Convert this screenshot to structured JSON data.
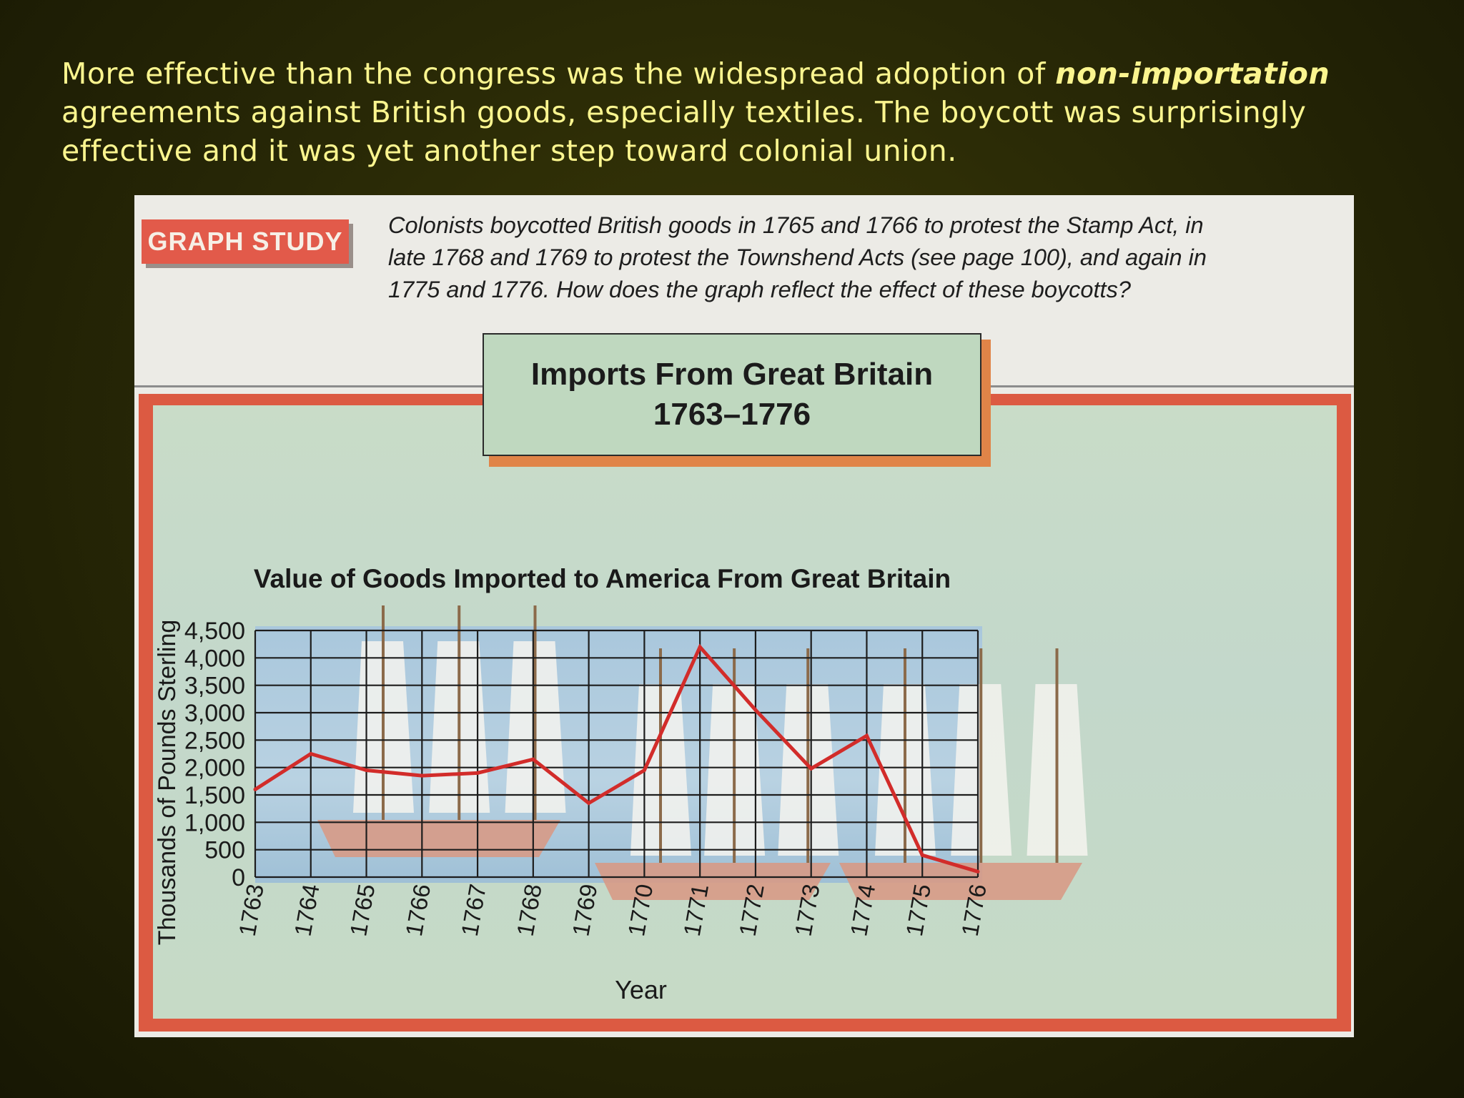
{
  "caption": {
    "line1_a": "More effective than the congress was the widespread adoption of ",
    "line1_em": "non-importation",
    "line2": "agreements against British goods, especially textiles.  The boycott was surprisingly",
    "line3": "effective and it was yet another step toward colonial union."
  },
  "graph_study": {
    "tab_label": "GRAPH STUDY",
    "line1": "Colonists boycotted British goods in 1765 and 1766 to protest the Stamp Act, in",
    "line2": "late 1768 and 1769 to protest the Townshend Acts (see page 100), and again in",
    "line3": "1775 and 1776. How does the graph reflect the effect of these boycotts?"
  },
  "title_box": {
    "line1": "Imports From Great Britain",
    "line2": "1763–1776"
  },
  "colors": {
    "line": "#d22c2a",
    "grid": "#1d1d1d",
    "frame": "#dc5a42"
  },
  "chart_data": {
    "type": "line",
    "title": "Value of Goods Imported to America From Great Britain",
    "xlabel": "Year",
    "ylabel": "Thousands of Pounds Sterling",
    "x": [
      1763,
      1764,
      1765,
      1766,
      1767,
      1768,
      1769,
      1770,
      1771,
      1772,
      1773,
      1774,
      1775,
      1776
    ],
    "x_tick_labels": [
      "1763",
      "1764",
      "1765",
      "1766",
      "1767",
      "1768",
      "1769",
      "1770",
      "1771",
      "1772",
      "1773",
      "1774",
      "1775",
      "1776"
    ],
    "y_ticks": [
      0,
      500,
      1000,
      1500,
      2000,
      2500,
      3000,
      3500,
      4000,
      4500
    ],
    "y_tick_labels": [
      "0",
      "500",
      "1,000",
      "1,500",
      "2,000",
      "2,500",
      "3,000",
      "3,500",
      "4,000",
      "4,500"
    ],
    "ylim": [
      0,
      4500
    ],
    "grid": true,
    "series": [
      {
        "values": [
          1600,
          2250,
          1950,
          1850,
          1900,
          2150,
          1350,
          1950,
          4200,
          3050,
          1980,
          2580,
          400,
          100
        ]
      }
    ]
  }
}
